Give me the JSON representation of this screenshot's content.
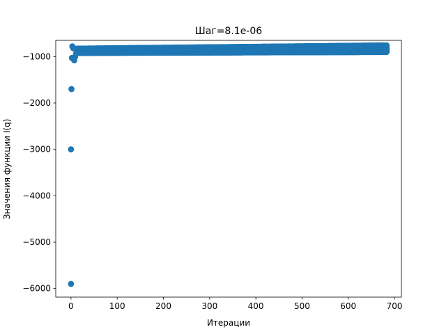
{
  "chart_data": {
    "type": "scatter",
    "title": "Шаг=8.1e-06",
    "xlabel": "Итерации",
    "ylabel": "Значения функции I(q)",
    "xlim": [
      -33,
      715
    ],
    "ylim": [
      -6185,
      -650
    ],
    "xticks": [
      0,
      100,
      200,
      300,
      400,
      500,
      600,
      700
    ],
    "yticks": [
      -6000,
      -5000,
      -4000,
      -3000,
      -2000,
      -1000
    ],
    "xtick_labels": [
      "0",
      "100",
      "200",
      "300",
      "400",
      "500",
      "600",
      "700"
    ],
    "ytick_labels": [
      "−6000",
      "−5000",
      "−4000",
      "−3000",
      "−2000",
      "−1000"
    ],
    "grid": false,
    "marker_color": "#1f77b4",
    "outliers": [
      {
        "x": 0,
        "y": -5900
      },
      {
        "x": 0,
        "y": -3000
      },
      {
        "x": 1,
        "y": -1700
      },
      {
        "x": 2,
        "y": -1030
      },
      {
        "x": 3,
        "y": -780
      },
      {
        "x": 5,
        "y": -820
      },
      {
        "x": 7,
        "y": -1080
      },
      {
        "x": 9,
        "y": -1000
      },
      {
        "x": 11,
        "y": -940
      }
    ],
    "band": {
      "x_start": 12,
      "x_end": 683,
      "y_upper_start": -830,
      "y_upper_end": -760,
      "y_lower_start": -920,
      "y_lower_end": -900
    }
  }
}
